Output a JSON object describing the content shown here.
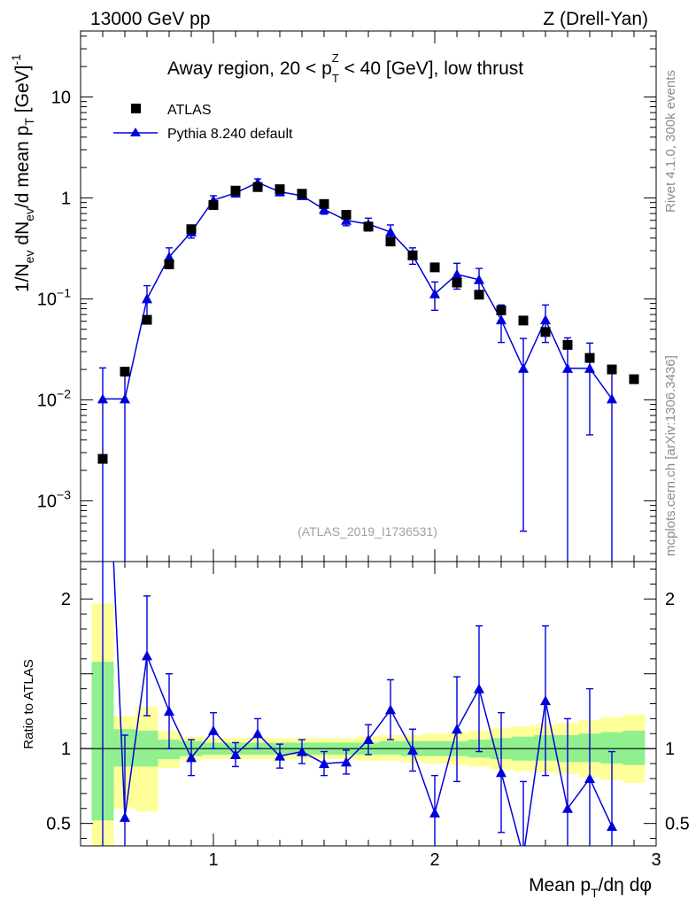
{
  "header": {
    "left": "13000 GeV pp",
    "right": "Z (Drell-Yan)"
  },
  "side_labels": {
    "rivet": "Rivet 4.1.0,  300k events",
    "mcplots": "mcplots.cern.ch [arXiv:1306.3436]"
  },
  "colors": {
    "atlas": "#000000",
    "pythia": "#0000dd",
    "band_green": "#90f090",
    "band_yellow": "#ffff99",
    "axis": "#000000"
  },
  "chart_data": [
    {
      "type": "scatter",
      "title": "Away region, 20 < p_T^Z < 40 [GeV], low thrust",
      "title_parts": {
        "a": "Away region, 20 < p",
        "sub": "T",
        "sup": "Z",
        "b": " < 40 [GeV], low thrust"
      },
      "ylabel": "1/N_ev dN_ev/d mean p_T [GeV]^-1",
      "ylabel_parts": {
        "p1": "1/N",
        "s1": "ev",
        "p2": " dN",
        "s2": "ev",
        "p3": "/d mean p",
        "s3": "T",
        "p4": " [GeV]",
        "sup": "-1"
      },
      "yscale": "log",
      "ylim": [
        0.00025,
        45
      ],
      "xlim": [
        0.4,
        3.0
      ],
      "y_ticks": [
        {
          "value": 10,
          "label": "10"
        },
        {
          "value": 1,
          "label": "1"
        },
        {
          "value": 0.1,
          "label": "10",
          "exp": "−1"
        },
        {
          "value": 0.01,
          "label": "10",
          "exp": "−2"
        },
        {
          "value": 0.001,
          "label": "10",
          "exp": "−3"
        }
      ],
      "watermark": "(ATLAS_2019_I1736531)",
      "legend": {
        "placement": "top-left",
        "atlas": "ATLAS",
        "pythia": "Pythia 8.240 default"
      },
      "series": [
        {
          "name": "ATLAS",
          "x": [
            0.5,
            0.6,
            0.7,
            0.8,
            0.9,
            1.0,
            1.1,
            1.2,
            1.3,
            1.4,
            1.5,
            1.6,
            1.7,
            1.8,
            1.9,
            2.0,
            2.1,
            2.2,
            2.3,
            2.4,
            2.5,
            2.6,
            2.7,
            2.8,
            2.9
          ],
          "y": [
            0.0026,
            0.019,
            0.062,
            0.22,
            0.49,
            0.85,
            1.18,
            1.28,
            1.22,
            1.1,
            0.87,
            0.68,
            0.52,
            0.37,
            0.27,
            0.205,
            0.145,
            0.11,
            0.077,
            0.061,
            0.047,
            0.035,
            0.026,
            0.02,
            0.016
          ]
        },
        {
          "name": "Pythia 8.240 default",
          "x": [
            0.5,
            0.6,
            0.7,
            0.8,
            0.9,
            1.0,
            1.1,
            1.2,
            1.3,
            1.4,
            1.5,
            1.6,
            1.7,
            1.8,
            1.9,
            2.0,
            2.1,
            2.2,
            2.3,
            2.4,
            2.5,
            2.6,
            2.7,
            2.8
          ],
          "y": [
            0.0102,
            0.0102,
            0.1,
            0.26,
            0.46,
            0.95,
            1.12,
            1.42,
            1.15,
            1.05,
            0.77,
            0.6,
            0.55,
            0.46,
            0.27,
            0.112,
            0.175,
            0.155,
            0.062,
            0.0205,
            0.062,
            0.0205,
            0.0205,
            0.0102
          ],
          "err": [
            0.0105,
            0.0106,
            0.035,
            0.06,
            0.06,
            0.1,
            0.1,
            0.12,
            0.1,
            0.08,
            0.08,
            0.07,
            0.08,
            0.08,
            0.05,
            0.035,
            0.05,
            0.045,
            0.025,
            0.02,
            0.025,
            0.0206,
            0.016,
            0.0103
          ]
        }
      ]
    },
    {
      "type": "line",
      "ylabel": "Ratio to ATLAS",
      "xlabel": "Mean p_T/dη dφ",
      "xlabel_parts": {
        "a": "Mean p",
        "sub": "T",
        "b": "/dη dφ"
      },
      "ylim": [
        0.35,
        2.25
      ],
      "xlim": [
        0.4,
        3.0
      ],
      "y_ticks": [
        {
          "value": 2,
          "label": "2"
        },
        {
          "value": 1,
          "label": "1"
        },
        {
          "value": 0.5,
          "label": "0.5"
        }
      ],
      "x_ticks": [
        {
          "value": 1,
          "label": "1"
        },
        {
          "value": 2,
          "label": "2"
        },
        {
          "value": 3,
          "label": "3"
        }
      ],
      "reference": 1,
      "band_green": [
        [
          0.45,
          0.55,
          0.52,
          1.58
        ],
        [
          0.55,
          0.65,
          0.88,
          1.13
        ],
        [
          0.65,
          0.75,
          0.88,
          1.12
        ],
        [
          0.75,
          0.85,
          0.93,
          1.06
        ],
        [
          0.85,
          0.95,
          0.95,
          1.05
        ],
        [
          0.95,
          1.05,
          0.96,
          1.04
        ],
        [
          1.05,
          1.15,
          0.96,
          1.04
        ],
        [
          1.15,
          1.25,
          0.96,
          1.04
        ],
        [
          1.25,
          1.35,
          0.96,
          1.04
        ],
        [
          1.35,
          1.45,
          0.96,
          1.04
        ],
        [
          1.45,
          1.55,
          0.96,
          1.04
        ],
        [
          1.55,
          1.65,
          0.96,
          1.04
        ],
        [
          1.65,
          1.75,
          0.96,
          1.04
        ],
        [
          1.75,
          1.85,
          0.96,
          1.05
        ],
        [
          1.85,
          1.95,
          0.95,
          1.05
        ],
        [
          1.95,
          2.05,
          0.95,
          1.05
        ],
        [
          2.05,
          2.15,
          0.95,
          1.05
        ],
        [
          2.15,
          2.25,
          0.94,
          1.06
        ],
        [
          2.25,
          2.35,
          0.93,
          1.07
        ],
        [
          2.35,
          2.45,
          0.92,
          1.08
        ],
        [
          2.45,
          2.55,
          0.92,
          1.09
        ],
        [
          2.55,
          2.65,
          0.91,
          1.09
        ],
        [
          2.65,
          2.75,
          0.91,
          1.1
        ],
        [
          2.75,
          2.85,
          0.9,
          1.11
        ],
        [
          2.85,
          2.95,
          0.89,
          1.12
        ]
      ],
      "band_yellow": [
        [
          0.45,
          0.55,
          0.3,
          1.97
        ],
        [
          0.55,
          0.65,
          0.6,
          1.22
        ],
        [
          0.65,
          0.75,
          0.58,
          1.28
        ],
        [
          0.75,
          0.85,
          0.87,
          1.12
        ],
        [
          0.85,
          0.95,
          0.92,
          1.08
        ],
        [
          0.95,
          1.05,
          0.93,
          1.07
        ],
        [
          1.05,
          1.15,
          0.93,
          1.07
        ],
        [
          1.15,
          1.25,
          0.93,
          1.07
        ],
        [
          1.25,
          1.35,
          0.93,
          1.07
        ],
        [
          1.35,
          1.45,
          0.93,
          1.07
        ],
        [
          1.45,
          1.55,
          0.93,
          1.07
        ],
        [
          1.55,
          1.65,
          0.93,
          1.07
        ],
        [
          1.65,
          1.75,
          0.92,
          1.08
        ],
        [
          1.75,
          1.85,
          0.92,
          1.09
        ],
        [
          1.85,
          1.95,
          0.91,
          1.09
        ],
        [
          1.95,
          2.05,
          0.9,
          1.1
        ],
        [
          2.05,
          2.15,
          0.89,
          1.11
        ],
        [
          2.15,
          2.25,
          0.88,
          1.12
        ],
        [
          2.25,
          2.35,
          0.86,
          1.14
        ],
        [
          2.35,
          2.45,
          0.85,
          1.15
        ],
        [
          2.45,
          2.55,
          0.84,
          1.16
        ],
        [
          2.55,
          2.65,
          0.83,
          1.17
        ],
        [
          2.65,
          2.75,
          0.81,
          1.19
        ],
        [
          2.75,
          2.85,
          0.79,
          1.21
        ],
        [
          2.85,
          2.95,
          0.77,
          1.23
        ]
      ],
      "series": [
        {
          "name": "Pythia 8.240 default",
          "x": [
            0.5,
            0.6,
            0.7,
            0.8,
            0.9,
            1.0,
            1.1,
            1.2,
            1.3,
            1.4,
            1.5,
            1.6,
            1.7,
            1.8,
            1.9,
            2.0,
            2.1,
            2.2,
            2.3,
            2.4,
            2.5,
            2.6,
            2.7,
            2.8
          ],
          "y": [
            3.9,
            0.54,
            1.62,
            1.25,
            0.94,
            1.12,
            0.96,
            1.1,
            0.95,
            0.98,
            0.9,
            0.91,
            1.06,
            1.26,
            0.99,
            0.57,
            1.13,
            1.4,
            0.84,
            0.28,
            1.32,
            0.6,
            0.8,
            0.48
          ],
          "err": [
            4.0,
            0.55,
            0.4,
            0.25,
            0.12,
            0.12,
            0.08,
            0.1,
            0.08,
            0.08,
            0.08,
            0.08,
            0.1,
            0.2,
            0.14,
            0.25,
            0.35,
            0.42,
            0.4,
            0.5,
            0.5,
            0.6,
            0.6,
            0.5
          ]
        }
      ]
    }
  ]
}
